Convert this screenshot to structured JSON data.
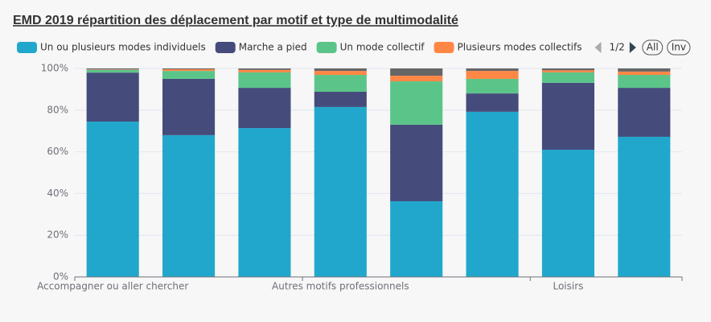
{
  "chart_data": {
    "type": "stacked-bar",
    "title": "EMD 2019 répartition des déplacement par motif et type de multimodalité",
    "categories": [
      "Accompagner ou aller chercher",
      null,
      null,
      "Autres motifs professionnels",
      null,
      null,
      "Loisirs",
      null
    ],
    "series": [
      {
        "name": "Un ou plusieurs modes individuels",
        "color": "#22a7cc",
        "values": [
          74.5,
          68.0,
          71.4,
          81.5,
          36.3,
          79.2,
          61.0,
          67.2
        ]
      },
      {
        "name": "Marche a pied",
        "color": "#454c7c",
        "values": [
          23.5,
          27.0,
          19.3,
          7.3,
          36.7,
          8.8,
          32.1,
          23.5
        ]
      },
      {
        "name": "Un mode collectif",
        "color": "#5bc589",
        "values": [
          1.3,
          3.8,
          7.4,
          8.1,
          20.8,
          7.0,
          5.0,
          6.2
        ]
      },
      {
        "name": "Plusieurs modes collectifs",
        "color": "#ff8746",
        "values": [
          0.2,
          0.8,
          1.2,
          1.9,
          2.7,
          3.8,
          1.0,
          1.6
        ]
      },
      {
        "color": "#666666",
        "values": [
          0.5,
          0.4,
          0.7,
          1.2,
          3.5,
          1.2,
          0.9,
          1.5
        ]
      }
    ],
    "ylim": [
      0,
      100
    ],
    "yticks": [
      {
        "value": 0,
        "label": "0%"
      },
      {
        "value": 20,
        "label": "20%"
      },
      {
        "value": 40,
        "label": "40%"
      },
      {
        "value": 60,
        "label": "60%"
      },
      {
        "value": 80,
        "label": "80%"
      },
      {
        "value": 100,
        "label": "100%"
      }
    ],
    "grid": true,
    "legend_controls": {
      "page": "1/2",
      "all": "All",
      "inv": "Inv"
    }
  }
}
